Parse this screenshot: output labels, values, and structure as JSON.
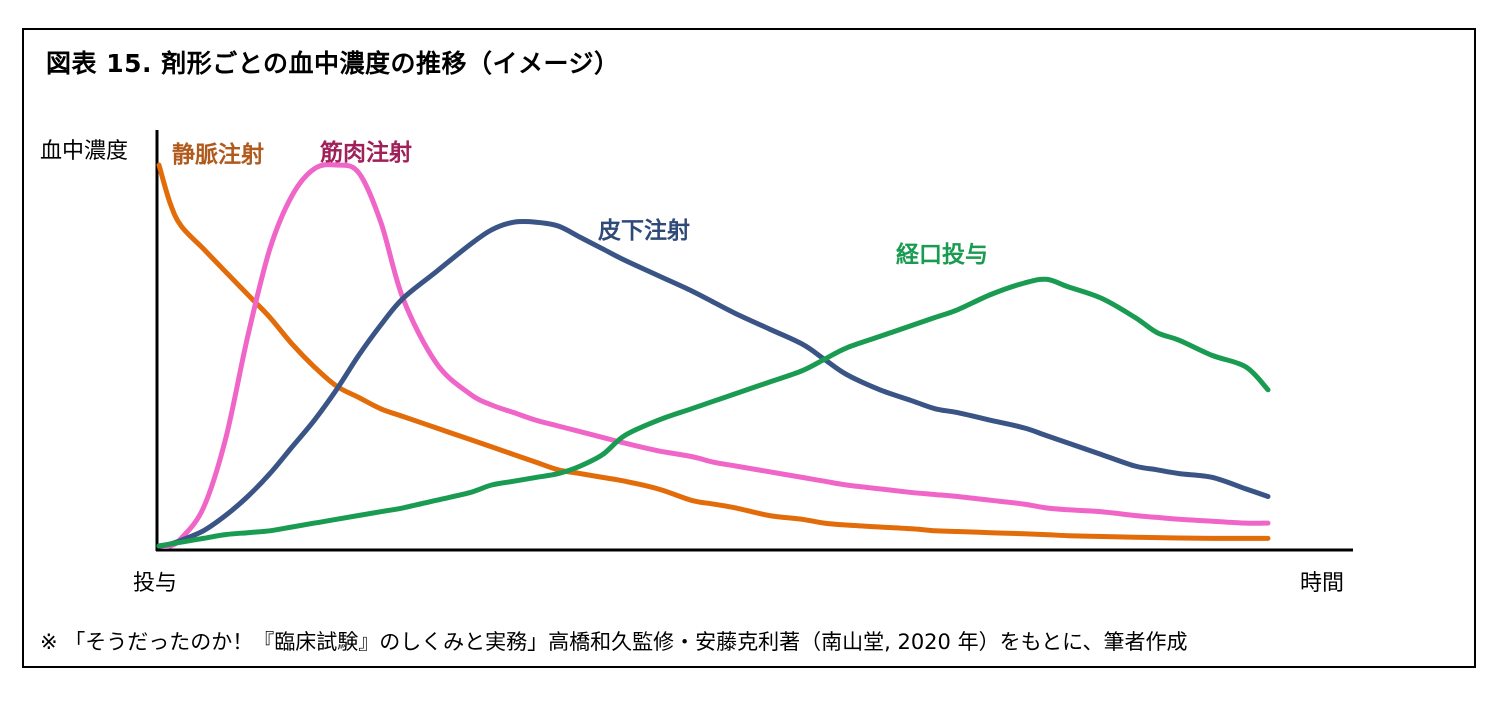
{
  "chart_data": {
    "type": "line",
    "title": "図表 15. 剤形ごとの血中濃度の推移（イメージ）",
    "ylabel": "血中濃度",
    "xlabel": "時間",
    "x_origin_label": "投与",
    "xlim": [
      0,
      100
    ],
    "ylim": [
      0,
      100
    ],
    "grid": false,
    "legend": "inline labels near each curve",
    "note": "※ 「そうだったのか！『臨床試験』のしくみと実務」高橋和久監修・安藤克利著（南山堂, 2020 年）をもとに、筆者作成",
    "x": [
      0,
      1,
      2,
      4,
      6,
      8,
      10,
      12,
      14,
      16,
      18,
      20,
      22,
      25,
      28,
      30,
      32,
      34,
      36,
      38,
      40,
      42,
      45,
      48,
      50,
      52,
      55,
      58,
      60,
      62,
      65,
      68,
      70,
      72,
      75,
      78,
      80,
      82,
      85,
      88,
      90,
      92,
      95,
      98,
      100
    ],
    "series": [
      {
        "name": "静脈注射",
        "color": "#E36C0A",
        "values": [
          100,
          90,
          84,
          78,
          72,
          66,
          60,
          53,
          47,
          42,
          39,
          36,
          34,
          31,
          28,
          26,
          24,
          22,
          20,
          19,
          18,
          17,
          15,
          12,
          11,
          10,
          8,
          7,
          6,
          5.5,
          5,
          4.5,
          4,
          3.8,
          3.5,
          3.2,
          3,
          2.7,
          2.5,
          2.3,
          2.2,
          2.1,
          2,
          2,
          2
        ]
      },
      {
        "name": "筋肉注射",
        "color": "#F066C8",
        "values": [
          0,
          0,
          2,
          10,
          28,
          55,
          78,
          92,
          99,
          100,
          98,
          85,
          65,
          48,
          40,
          37,
          35,
          33,
          31.5,
          30,
          28.5,
          27,
          25,
          23.5,
          22,
          21,
          19.5,
          18,
          17,
          16,
          15,
          14,
          13.5,
          13,
          12,
          11,
          10,
          9.5,
          9,
          8,
          7.5,
          7,
          6.5,
          6,
          6
        ]
      },
      {
        "name": "皮下注射",
        "color": "#3A5585",
        "values": [
          0,
          0.5,
          1.5,
          4,
          8,
          13,
          19,
          26,
          33,
          41,
          50,
          58,
          65,
          72,
          79,
          83,
          85,
          85,
          84,
          81,
          78,
          75,
          71,
          67,
          64,
          61,
          57,
          53,
          49,
          45,
          41,
          38,
          36,
          35,
          33,
          31,
          29,
          27,
          24,
          21,
          20,
          19,
          18,
          15,
          13
        ]
      },
      {
        "name": "経口投与",
        "color": "#1A9B52",
        "values": [
          0,
          0.5,
          1,
          2,
          3,
          3.5,
          4,
          5,
          6,
          7,
          8,
          9,
          10,
          12,
          14,
          16,
          17,
          18,
          19,
          21,
          24,
          29,
          33,
          36,
          38,
          40,
          43,
          46,
          49,
          52,
          55,
          58,
          60,
          62,
          66,
          69,
          70,
          68,
          65,
          60,
          56,
          54,
          50,
          47,
          41
        ]
      }
    ]
  }
}
